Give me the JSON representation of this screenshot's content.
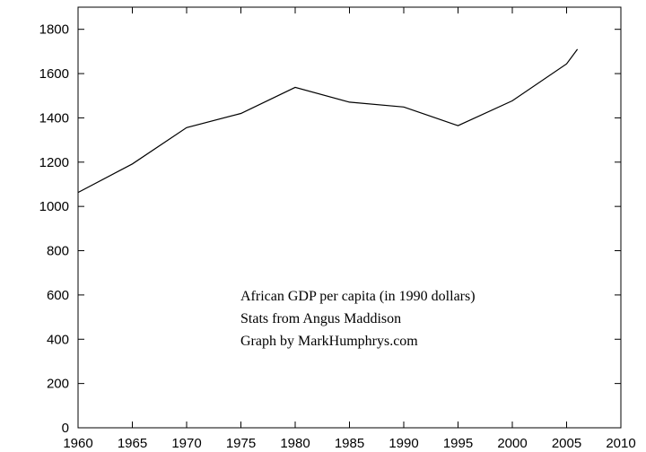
{
  "chart_data": {
    "type": "line",
    "title": "",
    "xlabel": "",
    "ylabel": "",
    "xlim": [
      1960,
      2010
    ],
    "ylim": [
      0,
      1900
    ],
    "x_ticks": [
      1960,
      1965,
      1970,
      1975,
      1980,
      1985,
      1990,
      1995,
      2000,
      2005,
      2010
    ],
    "y_ticks": [
      0,
      200,
      400,
      600,
      800,
      1000,
      1200,
      1400,
      1600,
      1800
    ],
    "grid": false,
    "legend": "none",
    "series": [
      {
        "color": "#000000",
        "x": [
          1960,
          1965,
          1970,
          1975,
          1980,
          1985,
          1990,
          1995,
          2000,
          2005,
          2006
        ],
        "y": [
          1063,
          1192,
          1356,
          1420,
          1538,
          1471,
          1449,
          1365,
          1477,
          1644,
          1710
        ]
      }
    ],
    "annotations": [
      "African GDP per capita (in 1990 dollars)",
      "Stats from Angus Maddison",
      "Graph by MarkHumphrys.com"
    ]
  }
}
